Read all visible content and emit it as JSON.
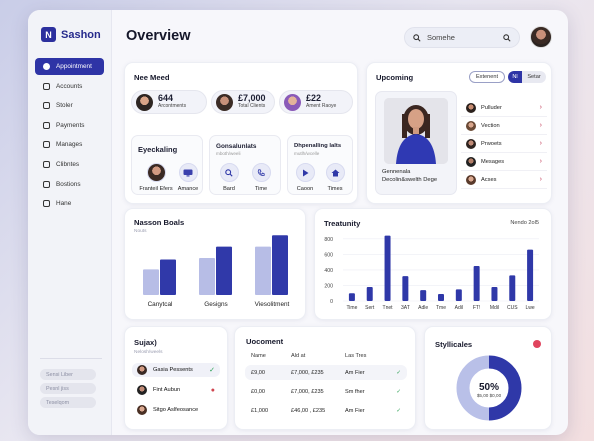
{
  "app": {
    "name": "Sashon"
  },
  "sidebar": {
    "items": [
      {
        "label": "Appointment",
        "active": true
      },
      {
        "label": "Accounts"
      },
      {
        "label": "Stoler"
      },
      {
        "label": "Payments"
      },
      {
        "label": "Manages"
      },
      {
        "label": "Clibntes"
      },
      {
        "label": "Bostions"
      },
      {
        "label": "Hane"
      }
    ],
    "footer": [
      "Sensi Liber",
      "Pesnl jiss",
      "Teselqom"
    ]
  },
  "header": {
    "title": "Overview",
    "search_value": "Somehe"
  },
  "need_card": {
    "title": "Nee Meed",
    "stats": [
      {
        "value": "644",
        "label": "Arcontments"
      },
      {
        "value": "£7,000",
        "label": "Total Clients"
      },
      {
        "value": "£22",
        "label": "Ament Raoye"
      }
    ]
  },
  "mini1": {
    "title": "Eyeckaling",
    "tiles": [
      "Franteil Efers",
      "Amance"
    ]
  },
  "mini2": {
    "title": "Gonsalunlats",
    "sub": "mboth/weeli",
    "tiles": [
      "Bard",
      "Time"
    ]
  },
  "mini3": {
    "title": "Dhpenalling lalts",
    "sub": "mutlh/wcelle",
    "tiles": [
      "Caoon",
      "Times"
    ]
  },
  "upcoming": {
    "title": "Upcoming",
    "btn_outline": "Extenent",
    "btn_toggle_a": "Nl",
    "btn_toggle_b": "Setar",
    "profile_name": "Gennenala",
    "profile_sub": "Decolin&swelth Dege",
    "list": [
      "Pulluder",
      "Vection",
      "Prwoets",
      "Mesages",
      "Acses"
    ]
  },
  "nason": {
    "title": "Nasson Boals",
    "sub": "Nouts",
    "chart_data": {
      "type": "bar",
      "categories": [
        "Canytcal",
        "Gesigns",
        "Viesolitment"
      ],
      "series": [
        {
          "values": [
            18,
            26,
            34
          ]
        },
        {
          "values": [
            25,
            34,
            42
          ]
        }
      ],
      "colors": [
        "#b7bde6",
        "#3039a9"
      ],
      "ylim": [
        0,
        45
      ]
    }
  },
  "treatunity": {
    "title": "Treatunity",
    "legend": "Nendo 2ol5",
    "chart_data": {
      "type": "bar",
      "categories": [
        "Time",
        "Sert",
        "Tnet",
        "3AT",
        "Adle",
        "Tme",
        "Adil",
        "FT!",
        "Mdil",
        "CUS",
        "Lwe"
      ],
      "values": [
        100,
        180,
        840,
        320,
        140,
        90,
        150,
        450,
        180,
        330,
        660
      ],
      "yticks": [
        0,
        200,
        400,
        600,
        800
      ],
      "ylim": [
        0,
        900
      ],
      "color": "#2f38a8"
    }
  },
  "sujax": {
    "title": "Sujax)",
    "sub": "Nelosh/weels",
    "items": [
      {
        "label": "Gasia Pessents"
      },
      {
        "label": "Fint Aubun"
      },
      {
        "label": "Sitgo Aslfeosance"
      }
    ]
  },
  "uocoment": {
    "title": "Uocoment",
    "headers": [
      "Name",
      "Ald at",
      "Las Tres"
    ],
    "rows": [
      [
        "£9,00",
        "£7,000, £235",
        "Am Fier"
      ],
      [
        "£0,00",
        "£7,000, £235",
        "Sm fher"
      ],
      [
        "£1,000",
        "£46,00 , £235",
        "Am Fier"
      ]
    ]
  },
  "stylli": {
    "title": "Styllicales",
    "chart_data": {
      "type": "pie",
      "slices": [
        {
          "value": 50
        },
        {
          "value": 50
        }
      ],
      "center_value": "50%",
      "center_label": "$5,00 $0,00",
      "colors": [
        "#2f38a8",
        "#b9c0e8"
      ]
    }
  }
}
